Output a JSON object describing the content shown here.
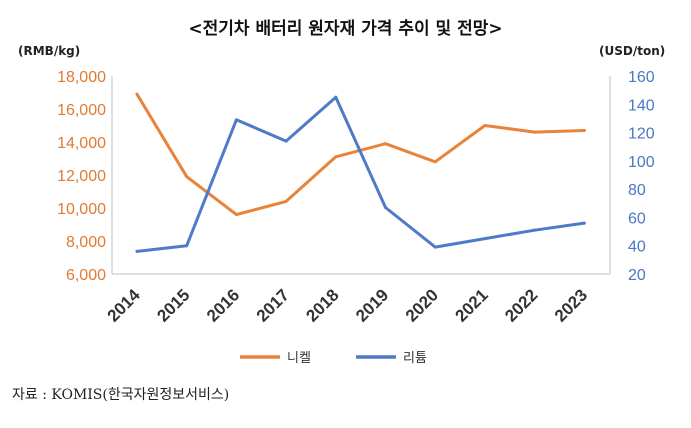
{
  "chart_data": {
    "type": "line",
    "title": "<전기차 배터리 원자재 가격 추이 및 전망>",
    "categories": [
      "2014",
      "2015",
      "2016",
      "2017",
      "2018",
      "2019",
      "2020",
      "2021",
      "2022",
      "2023"
    ],
    "y_left": {
      "label": "(RMB/kg)",
      "ylim": [
        6000,
        18000
      ],
      "ticks": [
        6000,
        8000,
        10000,
        12000,
        14000,
        16000,
        18000
      ],
      "tick_labels": [
        "6,000",
        "8,000",
        "10,000",
        "12,000",
        "14,000",
        "16,000",
        "18,000"
      ],
      "color": "#e07b32"
    },
    "y_right": {
      "label": "(USD/ton)",
      "ylim": [
        20,
        160
      ],
      "ticks": [
        20,
        40,
        60,
        80,
        100,
        120,
        140,
        160
      ],
      "tick_labels": [
        "20",
        "40",
        "60",
        "80",
        "100",
        "120",
        "140",
        "160"
      ],
      "color": "#4a78c4"
    },
    "series": [
      {
        "name": "니켈",
        "axis": "left",
        "color": "#e8833a",
        "values": [
          16900,
          11900,
          9600,
          10400,
          13100,
          13900,
          12800,
          15000,
          14600,
          14700
        ]
      },
      {
        "name": "리튬",
        "axis": "right",
        "color": "#4f7ac7",
        "values": [
          36,
          40,
          129,
          114,
          145,
          67,
          39,
          45,
          51,
          56
        ]
      }
    ],
    "grid": false,
    "legend_position": "bottom"
  },
  "source": "자료 : KOMIS(한국자원정보서비스)"
}
